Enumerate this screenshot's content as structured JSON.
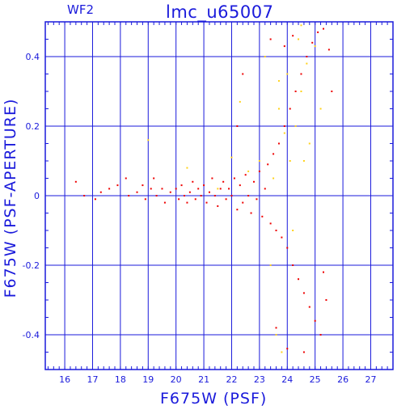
{
  "chip_label": "WF2",
  "chart_data": {
    "type": "scatter",
    "title": "lmc_u65007",
    "xlabel": "F675W (PSF)",
    "ylabel": "F675W (PSF-APERTURE)",
    "xlim": [
      15.3,
      27.8
    ],
    "ylim": [
      -0.5,
      0.5
    ],
    "x_ticks": [
      16,
      17,
      18,
      19,
      20,
      21,
      22,
      23,
      24,
      25,
      26,
      27
    ],
    "y_ticks": [
      -0.4,
      -0.2,
      0,
      0.2,
      0.4
    ],
    "grid": true,
    "colors": {
      "axis": "#1a1adb",
      "grid": "#1a1adb",
      "primary": "#ee0000",
      "secondary": "#ffd21a"
    },
    "series": [
      {
        "color": "#ee0000",
        "points": [
          [
            16.4,
            0.04
          ],
          [
            16.7,
            0.0
          ],
          [
            17.1,
            -0.01
          ],
          [
            17.3,
            0.01
          ],
          [
            17.6,
            0.02
          ],
          [
            17.9,
            0.03
          ],
          [
            18.2,
            0.05
          ],
          [
            18.3,
            0.0
          ],
          [
            18.6,
            0.01
          ],
          [
            18.8,
            0.03
          ],
          [
            18.9,
            -0.01
          ],
          [
            19.1,
            0.02
          ],
          [
            19.2,
            0.05
          ],
          [
            19.3,
            0.0
          ],
          [
            19.5,
            0.02
          ],
          [
            19.6,
            -0.02
          ],
          [
            19.8,
            0.01
          ],
          [
            20.0,
            0.02
          ],
          [
            20.1,
            -0.01
          ],
          [
            20.2,
            0.03
          ],
          [
            20.3,
            0.0
          ],
          [
            20.4,
            -0.02
          ],
          [
            20.5,
            0.01
          ],
          [
            20.6,
            0.04
          ],
          [
            20.7,
            -0.01
          ],
          [
            20.8,
            0.02
          ],
          [
            20.9,
            0.0
          ],
          [
            21.0,
            0.03
          ],
          [
            21.1,
            -0.02
          ],
          [
            21.2,
            0.01
          ],
          [
            21.3,
            0.05
          ],
          [
            21.4,
            0.0
          ],
          [
            21.5,
            -0.03
          ],
          [
            21.6,
            0.02
          ],
          [
            21.7,
            0.04
          ],
          [
            21.8,
            -0.01
          ],
          [
            21.9,
            0.02
          ],
          [
            22.0,
            0.0
          ],
          [
            22.1,
            0.05
          ],
          [
            22.2,
            -0.04
          ],
          [
            22.3,
            0.03
          ],
          [
            22.4,
            -0.02
          ],
          [
            22.5,
            0.06
          ],
          [
            22.6,
            0.0
          ],
          [
            22.7,
            -0.05
          ],
          [
            22.8,
            0.04
          ],
          [
            22.9,
            -0.01
          ],
          [
            23.0,
            0.07
          ],
          [
            23.1,
            -0.06
          ],
          [
            23.2,
            0.02
          ],
          [
            23.3,
            0.09
          ],
          [
            23.4,
            -0.08
          ],
          [
            23.5,
            0.12
          ],
          [
            23.6,
            -0.1
          ],
          [
            23.7,
            0.15
          ],
          [
            23.8,
            -0.12
          ],
          [
            23.9,
            0.2
          ],
          [
            24.0,
            -0.15
          ],
          [
            24.1,
            0.25
          ],
          [
            24.2,
            -0.2
          ],
          [
            24.3,
            0.3
          ],
          [
            24.4,
            -0.24
          ],
          [
            24.5,
            0.35
          ],
          [
            24.6,
            -0.28
          ],
          [
            24.7,
            0.4
          ],
          [
            24.8,
            -0.32
          ],
          [
            24.9,
            0.44
          ],
          [
            25.0,
            -0.36
          ],
          [
            25.1,
            0.47
          ],
          [
            25.2,
            -0.4
          ],
          [
            25.3,
            0.48
          ],
          [
            25.4,
            -0.3
          ],
          [
            25.5,
            0.42
          ],
          [
            25.6,
            0.3
          ],
          [
            24.2,
            0.46
          ],
          [
            23.9,
            0.43
          ],
          [
            22.2,
            0.2
          ],
          [
            22.4,
            0.35
          ],
          [
            23.4,
            0.45
          ],
          [
            24.0,
            -0.44
          ],
          [
            24.6,
            -0.45
          ],
          [
            23.6,
            -0.38
          ],
          [
            25.3,
            -0.22
          ]
        ]
      },
      {
        "color": "#ffd21a",
        "points": [
          [
            19.0,
            0.16
          ],
          [
            20.4,
            0.08
          ],
          [
            21.5,
            0.02
          ],
          [
            22.0,
            0.11
          ],
          [
            22.3,
            0.27
          ],
          [
            22.6,
            0.07
          ],
          [
            23.0,
            0.1
          ],
          [
            23.2,
            0.4
          ],
          [
            23.4,
            -0.2
          ],
          [
            23.5,
            0.05
          ],
          [
            23.6,
            -0.4
          ],
          [
            23.7,
            0.25
          ],
          [
            23.8,
            -0.45
          ],
          [
            23.9,
            0.18
          ],
          [
            24.0,
            0.35
          ],
          [
            24.1,
            0.1
          ],
          [
            24.2,
            -0.1
          ],
          [
            24.3,
            0.2
          ],
          [
            24.4,
            0.45
          ],
          [
            24.5,
            0.3
          ],
          [
            24.6,
            0.1
          ],
          [
            24.7,
            0.38
          ],
          [
            24.8,
            0.15
          ],
          [
            25.0,
            0.43
          ],
          [
            25.2,
            0.25
          ],
          [
            24.5,
            0.49
          ],
          [
            23.7,
            0.33
          ]
        ]
      }
    ]
  }
}
